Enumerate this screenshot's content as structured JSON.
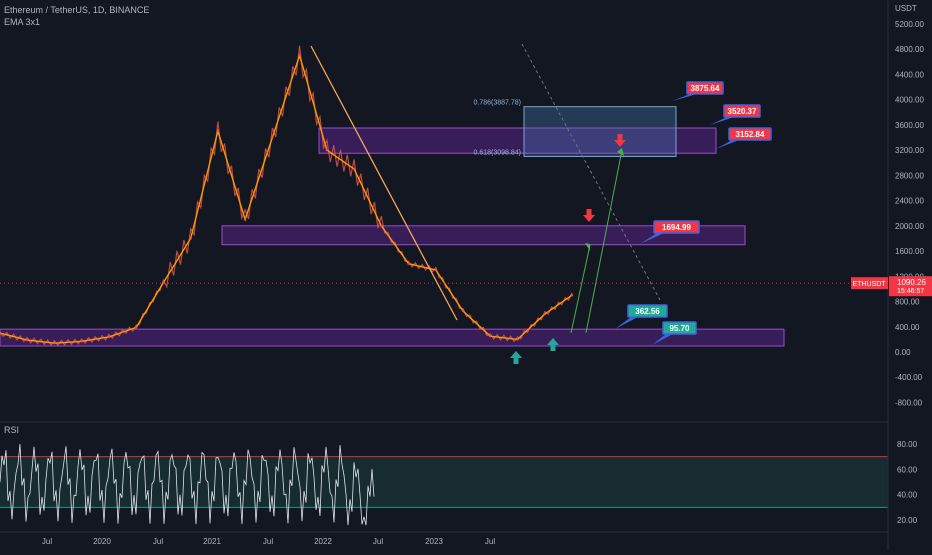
{
  "header": {
    "symbol_line": "Ethereum / TetherUS, 1D, BINANCE",
    "indicator": "EMA 3x1",
    "rsi_label": "RSI"
  },
  "price_axis": {
    "unit": "USDT",
    "ticks": [
      "5200.00",
      "4800.00",
      "4400.00",
      "4000.00",
      "3600.00",
      "3200.00",
      "2800.00",
      "2400.00",
      "2000.00",
      "1600.00",
      "1200.00",
      "800.00",
      "400.00",
      "0.00",
      "-400.00",
      "-800.00"
    ],
    "current_price": "1090.26",
    "countdown": "15:46:57",
    "symbol_tag": "ETHUSDT"
  },
  "rsi_axis": {
    "ticks": [
      "80.00",
      "60.00",
      "40.00",
      "20.00"
    ]
  },
  "time_axis": {
    "ticks": [
      "Jul",
      "2020",
      "Jul",
      "2021",
      "Jul",
      "2022",
      "Jul",
      "2023",
      "Jul"
    ]
  },
  "fib_labels": [
    "0.786(3887.78)",
    "0.618(3098.84)"
  ],
  "callouts": [
    {
      "text": "3875.64",
      "color": "#f23645"
    },
    {
      "text": "3520.37",
      "color": "#f23645"
    },
    {
      "text": "3152.84",
      "color": "#f23645"
    },
    {
      "text": "1694.99",
      "color": "#f23645"
    },
    {
      "text": "362.56",
      "color": "#22ab94"
    },
    {
      "text": "95.70",
      "color": "#22ab94"
    }
  ],
  "colors": {
    "background": "#131722",
    "zone_fill": "#7b2cbf",
    "fib_box": "#4a78b4",
    "ema_line": "#ff9800",
    "trendline": "#f7a35c",
    "up_arrow": "#26a69a",
    "down_arrow": "#f23645",
    "projection": "#4caf50",
    "rsi_line": "#e0e3eb",
    "rsi_upper": "#f23645",
    "rsi_lower": "#26a69a"
  },
  "chart_data": {
    "type": "line",
    "x": [
      "2019-07",
      "2019-10",
      "2020-01",
      "2020-04",
      "2020-07",
      "2020-10",
      "2021-01",
      "2021-03",
      "2021-05",
      "2021-07",
      "2021-09",
      "2021-11",
      "2022-01",
      "2022-03",
      "2022-05",
      "2022-07",
      "2022-10",
      "2023-01",
      "2023-04",
      "2023-07",
      "2023-10",
      "2023-12"
    ],
    "series": [
      {
        "values": [
          300,
          190,
          140,
          170,
          240,
          390,
          1100,
          1800,
          3500,
          2100,
          3400,
          4700,
          3200,
          2900,
          2000,
          1400,
          1300,
          650,
          250,
          200,
          600,
          900
        ]
      }
    ],
    "price_zones": [
      [
        1700,
        2000
      ],
      [
        3150,
        3550
      ],
      [
        95,
        362
      ]
    ],
    "fib_levels": [
      3887.78,
      3098.84
    ],
    "callout_values": [
      3875.64,
      3520.37,
      3152.84,
      1694.99,
      362.56,
      95.7
    ],
    "current_price": 1090.26,
    "ylim": [
      -1000,
      5400
    ],
    "rsi": {
      "upper": 70,
      "lower": 30,
      "ylim": [
        15,
        90
      ]
    }
  }
}
